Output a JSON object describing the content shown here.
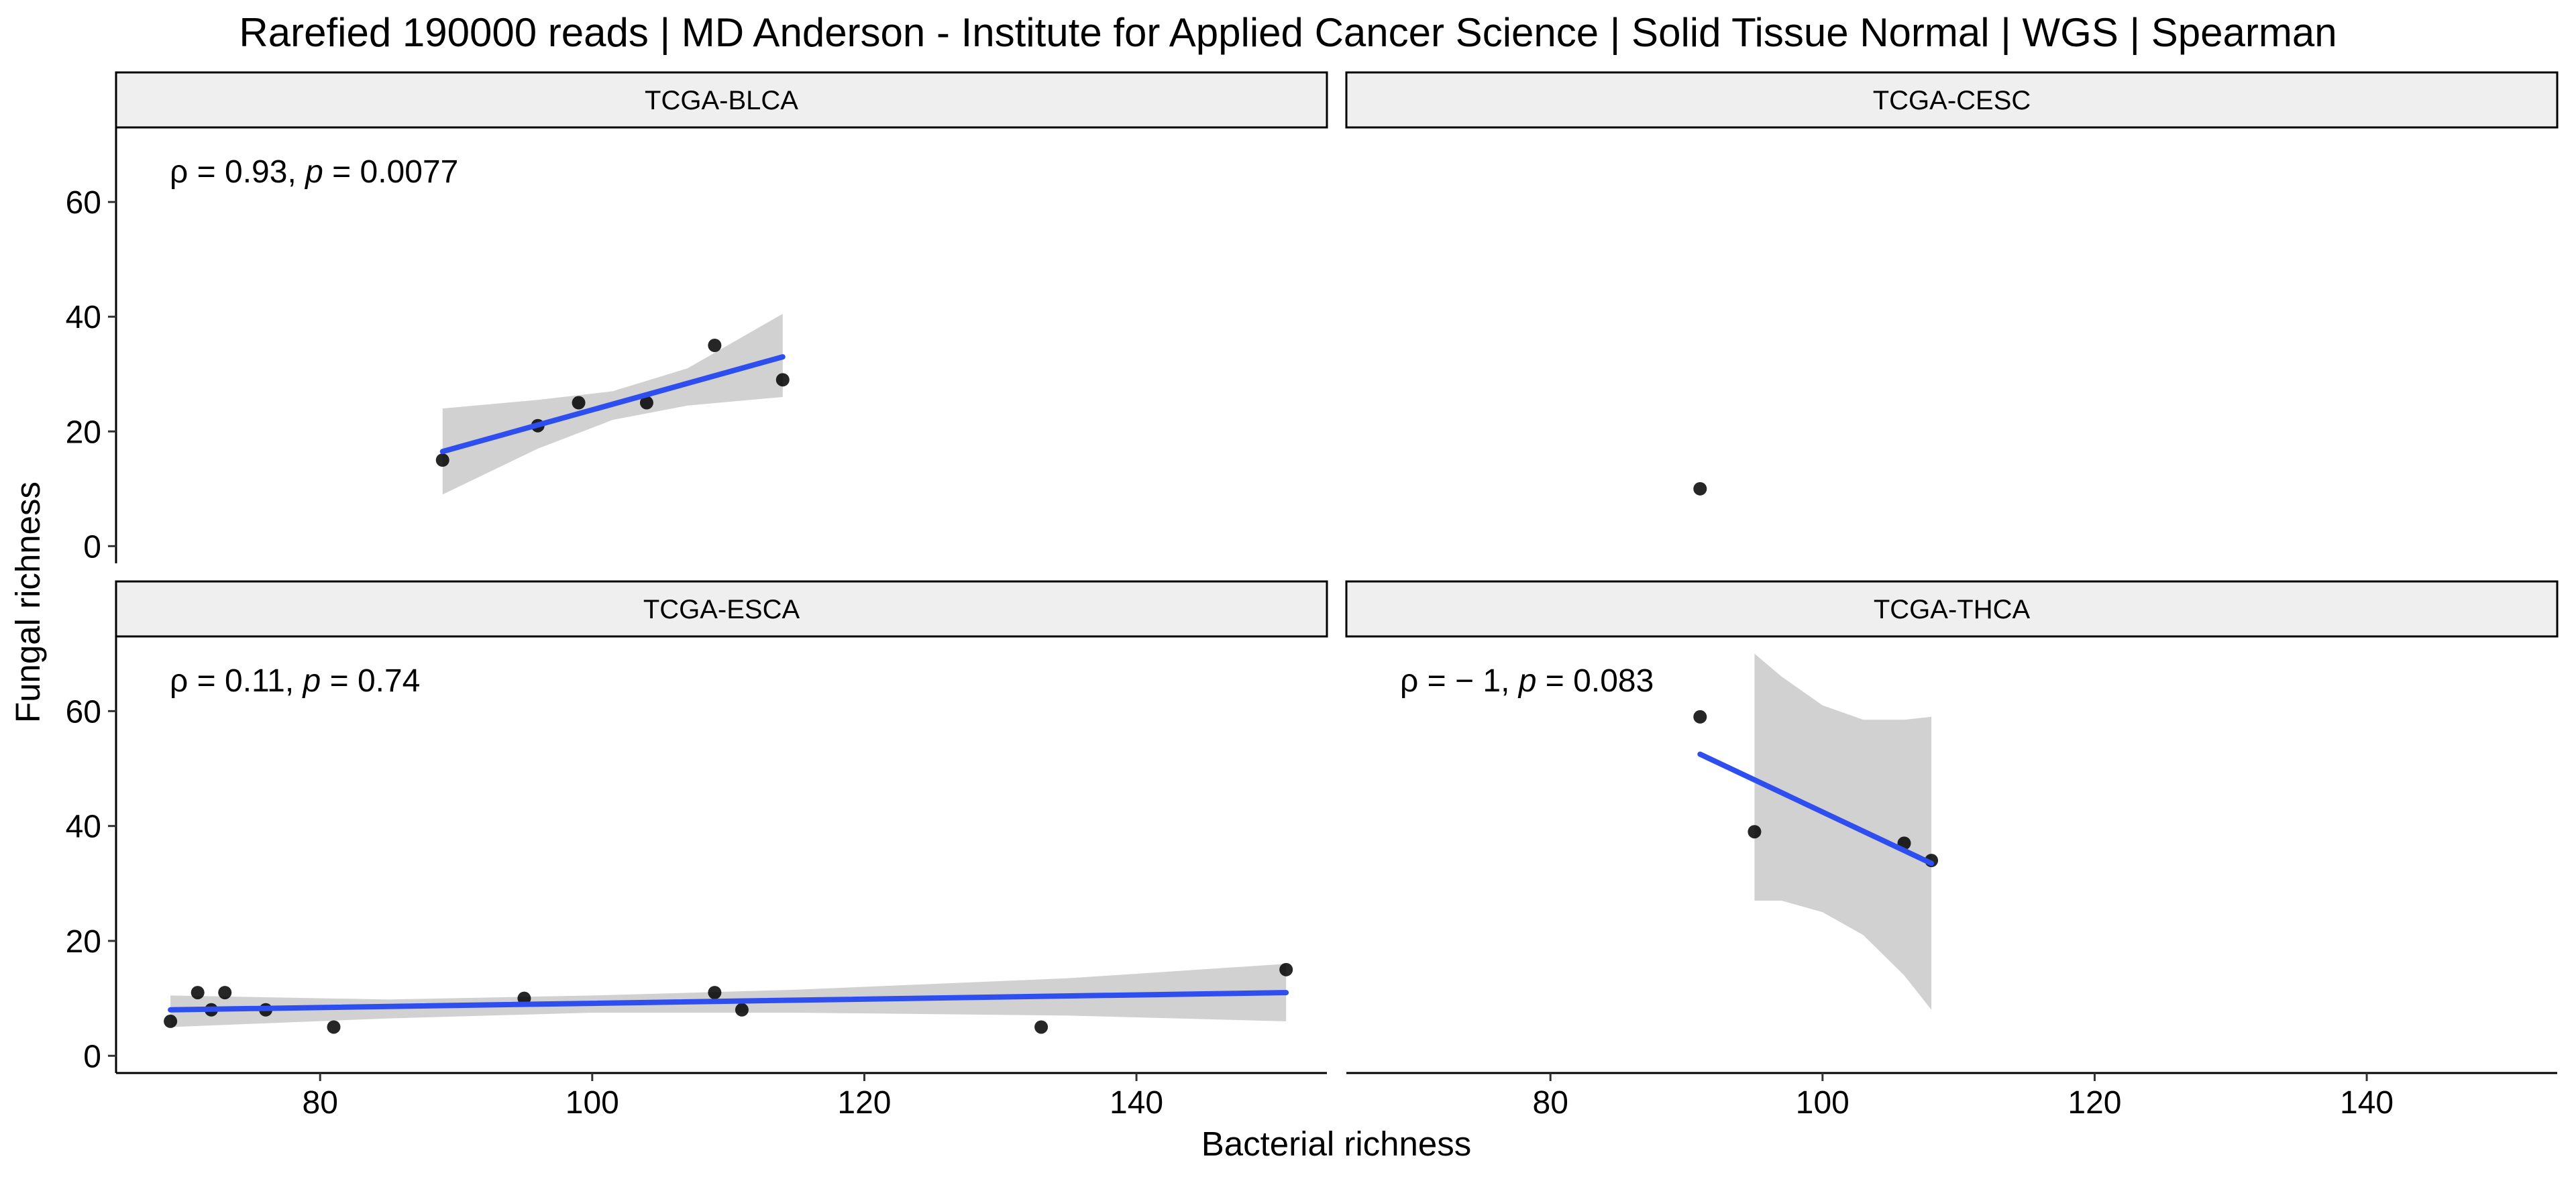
{
  "chart_data": {
    "type": "scatter",
    "title": "Rarefied 190000 reads | MD Anderson - Institute for Applied Cancer Science | Solid Tissue Normal | WGS | Spearman",
    "xlabel": "Bacterial richness",
    "ylabel": "Fungal richness",
    "xlim": [
      65,
      154
    ],
    "ylim": [
      -3,
      73
    ],
    "x_ticks": [
      80,
      100,
      120,
      140
    ],
    "y_ticks": [
      0,
      20,
      40,
      60
    ],
    "grid": false,
    "colors": {
      "points": "#000000",
      "fit_line": "#2f4ef0",
      "confidence_band": "#cfcfcf",
      "strip_fill": "#efefef"
    },
    "panels": [
      {
        "name": "TCGA-BLCA",
        "annotation": {
          "rho": "0.93",
          "p": "0.0077"
        },
        "points": [
          [
            89,
            15
          ],
          [
            96,
            21
          ],
          [
            99,
            25
          ],
          [
            104,
            25
          ],
          [
            109,
            35
          ],
          [
            114,
            29
          ]
        ],
        "fit": {
          "x": [
            89,
            114
          ],
          "y": [
            16.5,
            33
          ]
        },
        "band": {
          "x": [
            89,
            96,
            101.5,
            107,
            114
          ],
          "lower": [
            9,
            17,
            22,
            24.5,
            26
          ],
          "upper": [
            24,
            25.5,
            27,
            31,
            40.5
          ]
        }
      },
      {
        "name": "TCGA-CESC",
        "annotation": null,
        "points": [
          [
            91,
            10
          ]
        ],
        "fit": null,
        "band": null
      },
      {
        "name": "TCGA-ESCA",
        "annotation": {
          "rho": "0.11",
          "p": "0.74"
        },
        "points": [
          [
            69,
            6
          ],
          [
            71,
            11
          ],
          [
            72,
            8
          ],
          [
            73,
            11
          ],
          [
            76,
            8
          ],
          [
            81,
            5
          ],
          [
            95,
            10
          ],
          [
            109,
            11
          ],
          [
            111,
            8
          ],
          [
            133,
            5
          ],
          [
            151,
            15
          ]
        ],
        "fit": {
          "x": [
            69,
            151
          ],
          "y": [
            8,
            11
          ]
        },
        "band": {
          "x": [
            69,
            85,
            100,
            115,
            135,
            151
          ],
          "lower": [
            5,
            6.5,
            7.5,
            7.5,
            7,
            6
          ],
          "upper": [
            10.5,
            9.8,
            10.5,
            11.5,
            13.5,
            16
          ]
        }
      },
      {
        "name": "TCGA-THCA",
        "annotation": {
          "rho": "− 1",
          "p": "0.083"
        },
        "points": [
          [
            91,
            59
          ],
          [
            95,
            39
          ],
          [
            106,
            37
          ],
          [
            108,
            34
          ]
        ],
        "fit": {
          "x": [
            91,
            108
          ],
          "y": [
            52.5,
            33.5
          ]
        },
        "band": {
          "x": [
            95,
            97,
            100,
            103,
            106,
            108
          ],
          "lower": [
            27,
            27,
            25,
            21,
            14,
            8
          ],
          "upper": [
            70,
            66,
            61,
            58.5,
            58.5,
            59
          ]
        }
      }
    ]
  }
}
